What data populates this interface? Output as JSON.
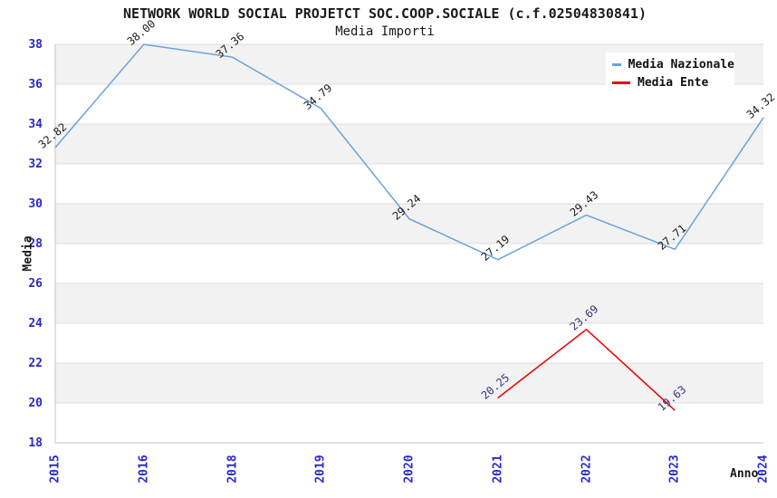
{
  "chart_data": {
    "type": "line",
    "title": "NETWORK WORLD SOCIAL PROJETCT SOC.COOP.SOCIALE (c.f.02504830841)",
    "subtitle": "Media Importi",
    "xlabel": "Anno",
    "ylabel": "Media",
    "categories": [
      "2015",
      "2016",
      "2018",
      "2019",
      "2020",
      "2021",
      "2022",
      "2023",
      "2024"
    ],
    "yticks": [
      18,
      20,
      22,
      24,
      26,
      28,
      30,
      32,
      34,
      36,
      38
    ],
    "ylim": [
      18,
      38
    ],
    "grid": "horizontal-bands",
    "band_colors": [
      "#f2f2f2",
      "#ffffff"
    ],
    "gridline_color": "#dcdcdc",
    "axis_line_color": "#c4c4c4",
    "tick_label_color": "#2828cc",
    "legend_position": "top-right",
    "legend": {
      "entries": [
        {
          "label": "Media Nazionale",
          "color": "#6ba1d9"
        },
        {
          "label": "Media Ente",
          "color": "#e80000"
        }
      ]
    },
    "series": [
      {
        "name": "Media Nazionale",
        "color": "#6ba1d9",
        "label_color": "#1c1c1c",
        "values": [
          32.82,
          38.0,
          37.36,
          34.79,
          29.24,
          27.19,
          29.43,
          27.71,
          34.32
        ]
      },
      {
        "name": "Media Ente",
        "color": "#e80000",
        "label_color": "#343477",
        "values": [
          null,
          null,
          null,
          null,
          null,
          20.25,
          23.69,
          19.63,
          null
        ]
      }
    ]
  }
}
